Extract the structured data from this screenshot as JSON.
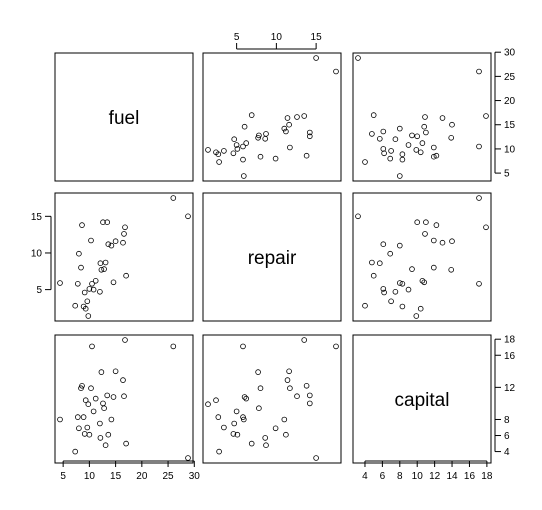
{
  "chart_data": {
    "type": "scatter",
    "variables": [
      "fuel",
      "repair",
      "capital"
    ],
    "observations": [
      {
        "fuel": 4.4,
        "repair": 5.9,
        "capital": 8.0
      },
      {
        "fuel": 7.3,
        "repair": 2.8,
        "capital": 4.0
      },
      {
        "fuel": 7.8,
        "repair": 5.8,
        "capital": 8.3
      },
      {
        "fuel": 8.0,
        "repair": 9.9,
        "capital": 6.9
      },
      {
        "fuel": 8.4,
        "repair": 8.0,
        "capital": 11.9
      },
      {
        "fuel": 8.6,
        "repair": 13.8,
        "capital": 12.2
      },
      {
        "fuel": 8.9,
        "repair": 2.7,
        "capital": 8.3
      },
      {
        "fuel": 9.1,
        "repair": 4.6,
        "capital": 6.2
      },
      {
        "fuel": 9.3,
        "repair": 2.4,
        "capital": 10.4
      },
      {
        "fuel": 9.6,
        "repair": 3.4,
        "capital": 7.0
      },
      {
        "fuel": 9.8,
        "repair": 1.4,
        "capital": 9.9
      },
      {
        "fuel": 10.0,
        "repair": 5.1,
        "capital": 6.1
      },
      {
        "fuel": 10.3,
        "repair": 11.7,
        "capital": 11.9
      },
      {
        "fuel": 10.5,
        "repair": 5.8,
        "capital": 17.1
      },
      {
        "fuel": 10.8,
        "repair": 5.0,
        "capital": 9.0
      },
      {
        "fuel": 11.2,
        "repair": 6.2,
        "capital": 10.6
      },
      {
        "fuel": 12.0,
        "repair": 4.7,
        "capital": 7.5
      },
      {
        "fuel": 12.1,
        "repair": 8.6,
        "capital": 5.7
      },
      {
        "fuel": 12.3,
        "repair": 7.7,
        "capital": 13.9
      },
      {
        "fuel": 12.6,
        "repair": 14.2,
        "capital": 10.0
      },
      {
        "fuel": 12.8,
        "repair": 7.8,
        "capital": 9.4
      },
      {
        "fuel": 13.1,
        "repair": 8.7,
        "capital": 4.8
      },
      {
        "fuel": 13.4,
        "repair": 14.2,
        "capital": 11.0
      },
      {
        "fuel": 13.6,
        "repair": 11.2,
        "capital": 6.1
      },
      {
        "fuel": 14.2,
        "repair": 11.0,
        "capital": 8.0
      },
      {
        "fuel": 14.6,
        "repair": 6.0,
        "capital": 10.8
      },
      {
        "fuel": 15.0,
        "repair": 11.6,
        "capital": 14.0
      },
      {
        "fuel": 16.4,
        "repair": 11.4,
        "capital": 12.9
      },
      {
        "fuel": 16.6,
        "repair": 12.6,
        "capital": 10.9
      },
      {
        "fuel": 16.8,
        "repair": 13.5,
        "capital": 17.9
      },
      {
        "fuel": 17.0,
        "repair": 6.9,
        "capital": 5.0
      },
      {
        "fuel": 26.0,
        "repair": 17.5,
        "capital": 17.1
      },
      {
        "fuel": 28.8,
        "repair": 15.0,
        "capital": 3.2
      }
    ],
    "ticks": {
      "fuel": [
        "5",
        "10",
        "15",
        "20",
        "25",
        "30"
      ],
      "repair": [
        "5",
        "10",
        "15"
      ],
      "capital": [
        "4",
        "6",
        "8",
        "12",
        "16",
        "18"
      ]
    },
    "tick_values": {
      "fuel": [
        5,
        10,
        15,
        20,
        25,
        30
      ],
      "repair": [
        5,
        10,
        15
      ],
      "capital": [
        4,
        6,
        8,
        12,
        16,
        18
      ]
    },
    "axis_range": {
      "fuel": [
        4.4,
        28.8
      ],
      "repair": [
        1.4,
        17.5
      ],
      "capital": [
        3.2,
        17.9
      ]
    },
    "tick_placement": {
      "fuel": {
        "bottom_labels": [
          "5",
          "10",
          "15",
          "20",
          "25",
          "30"
        ],
        "top_labels": [
          "5",
          "10",
          "15"
        ],
        "right_labels": [
          "5",
          "10",
          "15",
          "20",
          "25",
          "30"
        ]
      },
      "repair": {
        "left_labels": [
          "5",
          "10",
          "15"
        ]
      },
      "capital": {
        "right_labels": [
          "4",
          "6",
          "8",
          "12",
          "16",
          "18"
        ],
        "bottom_labels": [
          "4",
          "6",
          "8",
          "10",
          "12",
          "14",
          "16",
          "18"
        ]
      }
    },
    "extra_tick_labels": {
      "capital_bottom": [
        "4",
        "6",
        "8",
        "10",
        "12",
        "14",
        "16",
        "18"
      ],
      "capital_bottom_values": [
        4,
        6,
        8,
        10,
        12,
        14,
        16,
        18
      ]
    },
    "grid": false,
    "legend": "none"
  }
}
